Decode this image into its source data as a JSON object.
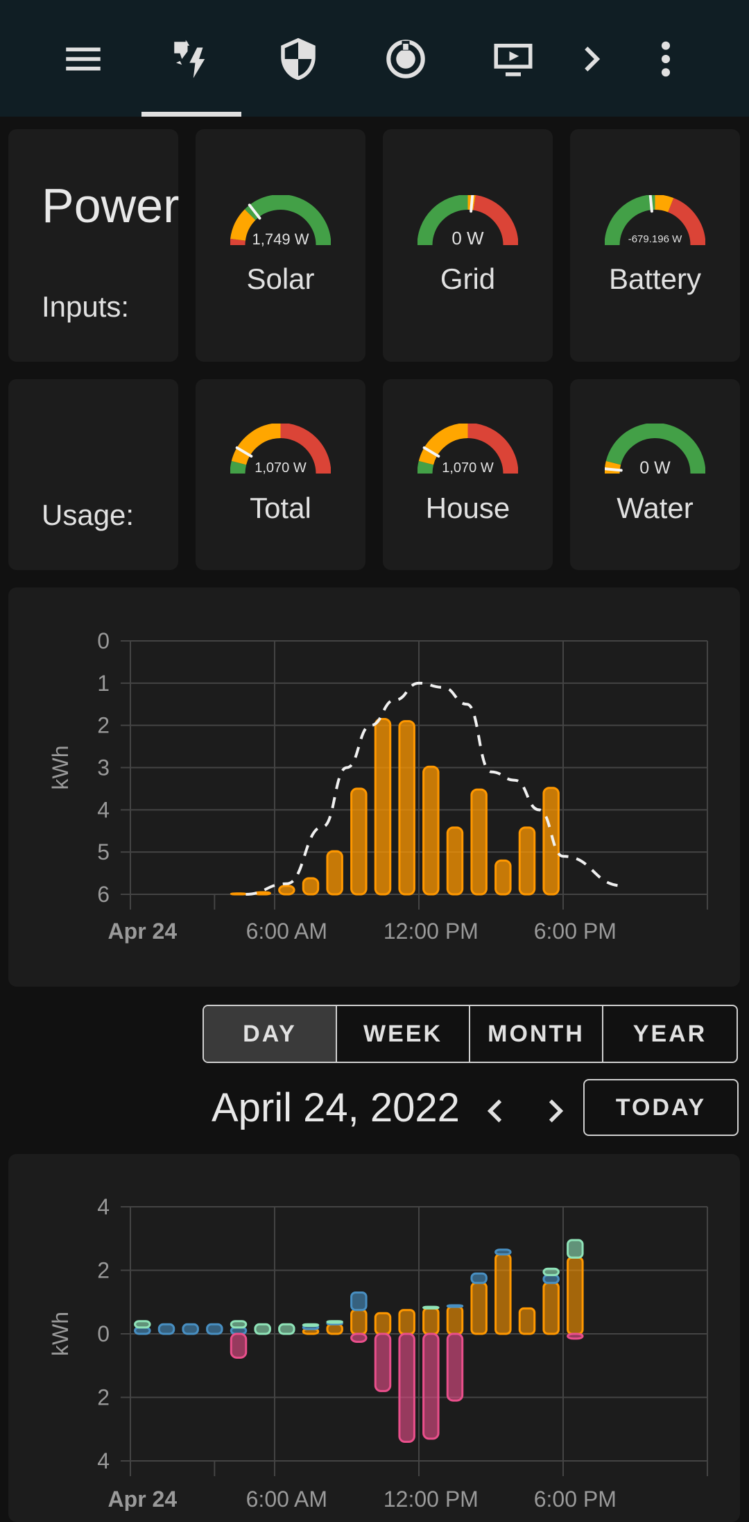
{
  "tabs": [
    {
      "name": "menu-icon"
    },
    {
      "name": "energy-icon",
      "active": true
    },
    {
      "name": "shield-icon"
    },
    {
      "name": "robot-vacuum-icon"
    },
    {
      "name": "media-player-icon"
    },
    {
      "name": "chevron-right-icon"
    },
    {
      "name": "more-vertical-icon"
    }
  ],
  "power": {
    "title": "Power",
    "inputs_label": "Inputs:",
    "usage_label": "Usage:"
  },
  "gauges": {
    "solar": {
      "label": "Solar",
      "value": "1,749 W",
      "level": 0.29,
      "segments": [
        [
          "#db4437",
          0,
          0.04
        ],
        [
          "#ffa600",
          0.04,
          0.25
        ],
        [
          "#43a047",
          0.25,
          1
        ]
      ]
    },
    "grid": {
      "label": "Grid",
      "value": "0 W",
      "level": 0.53,
      "segments": [
        [
          "#43a047",
          0,
          0.5
        ],
        [
          "#ffa600",
          0.5,
          0.55
        ],
        [
          "#db4437",
          0.55,
          1
        ]
      ]
    },
    "battery": {
      "label": "Battery",
      "value": "-679.196 W",
      "level": 0.47,
      "segments": [
        [
          "#43a047",
          0,
          0.5
        ],
        [
          "#ffa600",
          0.5,
          0.62
        ],
        [
          "#db4437",
          0.62,
          1
        ]
      ]
    },
    "total": {
      "label": "Total",
      "value": "1,070 W",
      "level": 0.17,
      "segments": [
        [
          "#43a047",
          0,
          0.08
        ],
        [
          "#ffa600",
          0.08,
          0.5
        ],
        [
          "#db4437",
          0.5,
          1
        ]
      ]
    },
    "house": {
      "label": "House",
      "value": "1,070 W",
      "level": 0.17,
      "segments": [
        [
          "#43a047",
          0,
          0.08
        ],
        [
          "#ffa600",
          0.08,
          0.5
        ],
        [
          "#db4437",
          0.5,
          1
        ]
      ]
    },
    "water": {
      "label": "Water",
      "value": "0 W",
      "level": 0.03,
      "segments": [
        [
          "#ffa600",
          0,
          0.08
        ],
        [
          "#43a047",
          0.08,
          1
        ]
      ]
    }
  },
  "chart_data": [
    {
      "type": "bar",
      "ylabel": "kWh",
      "ylim": [
        0,
        6
      ],
      "yticks": [
        "0",
        "1",
        "2",
        "3",
        "4",
        "5",
        "6"
      ],
      "xticks": [
        "Apr 24",
        "6:00 AM",
        "12:00 PM",
        "6:00 PM"
      ],
      "grid": true,
      "x_hours": [
        4.5,
        5.5,
        6.5,
        7.5,
        8.5,
        9.5,
        10.5,
        11.5,
        12.5,
        13.5,
        14.5,
        15.5,
        16.5,
        17.5,
        18.5
      ],
      "series": [
        {
          "values": [
            0.02,
            0.05,
            0.2,
            0.38,
            1.02,
            2.5,
            4.15,
            4.1,
            3.02,
            1.58,
            2.48,
            0.8,
            1.58,
            2.52,
            0
          ]
        },
        {
          "type": "line",
          "values": [
            [
              4.8,
              0
            ],
            [
              6.5,
              0.25
            ],
            [
              8,
              1.6
            ],
            [
              9,
              3.0
            ],
            [
              10,
              4.0
            ],
            [
              11,
              4.6
            ],
            [
              12,
              5.0
            ],
            [
              13,
              4.9
            ],
            [
              14,
              4.5
            ],
            [
              15,
              2.9
            ],
            [
              16,
              2.7
            ],
            [
              17,
              2.0
            ],
            [
              18,
              0.9
            ],
            [
              20.5,
              0.2
            ]
          ]
        }
      ]
    },
    {
      "type": "bar",
      "ylabel": "kWh",
      "ylim": [
        -4,
        4
      ],
      "yticks": [
        "4",
        "2",
        "0",
        "2",
        "4"
      ],
      "xticks": [
        "Apr 24",
        "6:00 AM",
        "12:00 PM",
        "6:00 PM"
      ],
      "grid": true,
      "x_hours": [
        0.5,
        1.5,
        2.5,
        3.5,
        4.5,
        5.5,
        6.5,
        7.5,
        8.5,
        9.5,
        10.5,
        11.5,
        12.5,
        13.5,
        14.5,
        15.5,
        16.5,
        17.5,
        18.5
      ],
      "series": [
        {
          "color": "#ff9800",
          "values": [
            0,
            0,
            0,
            0,
            0,
            0,
            0,
            0.15,
            0.3,
            0.75,
            0.65,
            0.75,
            0.8,
            0.85,
            1.6,
            2.5,
            0.8,
            1.6,
            2.4
          ]
        },
        {
          "color": "#488fc2",
          "values": [
            0.2,
            0.3,
            0.3,
            0.3,
            0.2,
            0,
            0,
            0.1,
            0.05,
            0.55,
            0,
            0,
            0,
            0.05,
            0.3,
            0.15,
            0,
            0.25,
            0
          ]
        },
        {
          "color": "#8fe3b8",
          "values": [
            0.2,
            0,
            0,
            0,
            0.2,
            0.3,
            0.3,
            0.05,
            0.05,
            0,
            0,
            0,
            0.05,
            0,
            0,
            0,
            0,
            0.2,
            0.55
          ]
        },
        {
          "color": "#e94f8b",
          "values": [
            0,
            0,
            0,
            0,
            -0.75,
            0,
            0,
            0,
            0,
            -0.25,
            -1.8,
            -3.4,
            -3.3,
            -2.1,
            0,
            0,
            0,
            0,
            -0.15
          ]
        }
      ]
    }
  ],
  "period": {
    "buttons": [
      "DAY",
      "WEEK",
      "MONTH",
      "YEAR"
    ],
    "active": "DAY"
  },
  "date": {
    "title": "April 24, 2022",
    "today_label": "TODAY"
  }
}
